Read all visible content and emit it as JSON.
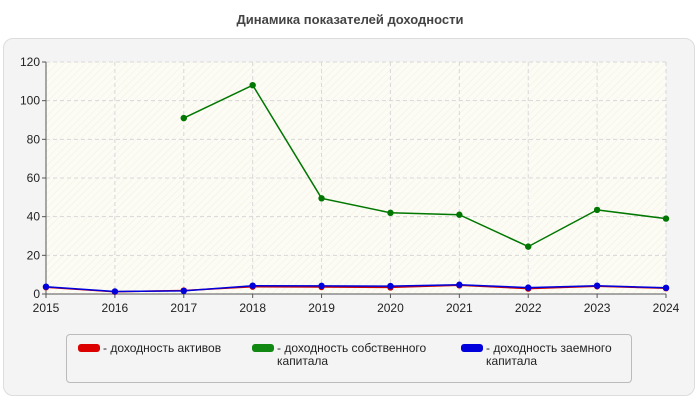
{
  "title": "Динамика показателей доходности",
  "chart_data": {
    "type": "line",
    "x": [
      2015,
      2016,
      2017,
      2018,
      2019,
      2020,
      2021,
      2022,
      2023,
      2024
    ],
    "xlim": [
      2015,
      2024
    ],
    "ylim": [
      0,
      120
    ],
    "yticks": [
      0,
      20,
      40,
      60,
      80,
      100,
      120
    ],
    "grid": true,
    "legend_position": "bottom",
    "series": [
      {
        "name": "- доходность активов",
        "color": "#cc0000",
        "values": [
          3.5,
          1.2,
          1.8,
          3.8,
          3.6,
          3.4,
          4.5,
          2.8,
          4.0,
          3.0
        ]
      },
      {
        "name": "- доходность собственного капитала",
        "color": "#007700",
        "values": [
          null,
          null,
          91,
          108,
          49.5,
          42,
          41,
          24.5,
          43.5,
          39
        ]
      },
      {
        "name": "- доходность заемного капитала",
        "color": "#0000dd",
        "values": [
          3.8,
          1.3,
          1.6,
          4.3,
          4.2,
          4.1,
          4.8,
          3.3,
          4.3,
          3.2
        ]
      }
    ]
  },
  "legend": {
    "items": [
      {
        "label": "- доходность активов",
        "color": "#dd0000"
      },
      {
        "label": "- доходность собственного\nкапитала",
        "color": "#118811"
      },
      {
        "label": "- доходность заемного\nкапитала",
        "color": "#0000dd"
      }
    ]
  }
}
